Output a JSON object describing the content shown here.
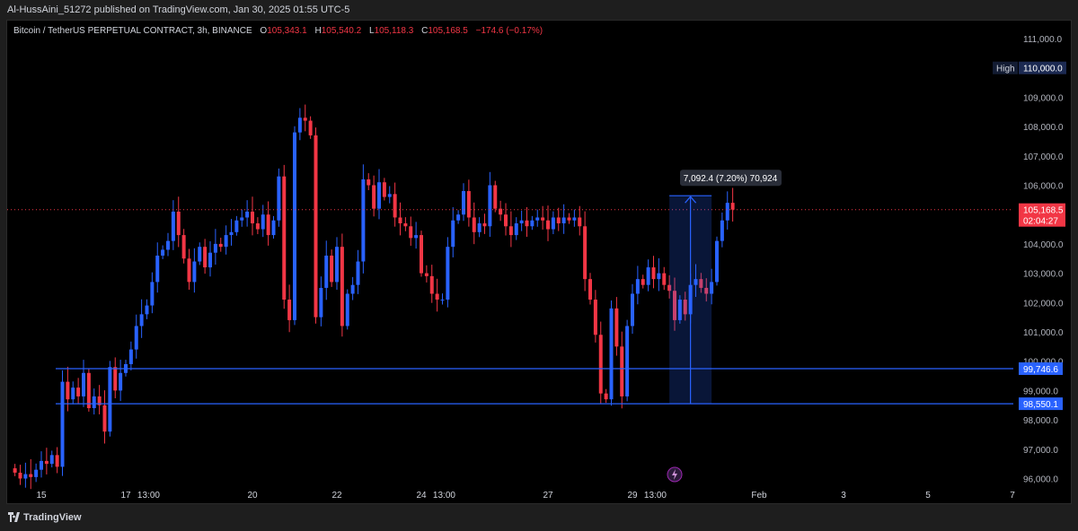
{
  "header": {
    "published_by": "Al-HussAini_51272 published on TradingView.com, Jan 30, 2025 01:55 UTC-5"
  },
  "legend": {
    "symbol": "Bitcoin / TetherUS PERPETUAL CONTRACT, 3h, BINANCE",
    "open_label": "O",
    "open": "105,343.1",
    "high_label": "H",
    "high": "105,540.2",
    "low_label": "L",
    "low": "105,118.3",
    "close_label": "C",
    "close": "105,168.5",
    "change": "−174.6 (−0.17%)"
  },
  "footer": {
    "brand": "TradingView"
  },
  "colors": {
    "up": "#2962ff",
    "down": "#f23645",
    "line": "#2962ff",
    "background": "#000000"
  },
  "chart_data": {
    "type": "candlestick",
    "y_ticks": [
      "111,000.0",
      "110,000.0",
      "109,000.0",
      "108,000.0",
      "107,000.0",
      "106,000.0",
      "105,000.0",
      "104,000.0",
      "103,000.0",
      "102,000.0",
      "101,000.0",
      "100,000.0",
      "99,000.0",
      "98,000.0",
      "97,000.0",
      "96,000.0"
    ],
    "y_tick_values": [
      111000,
      110000,
      109000,
      108000,
      107000,
      106000,
      105000,
      104000,
      103000,
      102000,
      101000,
      100000,
      99000,
      98000,
      97000,
      96000
    ],
    "ylim": [
      96000,
      111000
    ],
    "x_ticks": [
      {
        "label": "15",
        "x": 0
      },
      {
        "label": "17",
        "x": 16
      },
      {
        "label": "13:00",
        "x": 20.33
      },
      {
        "label": "20",
        "x": 40
      },
      {
        "label": "22",
        "x": 56
      },
      {
        "label": "24",
        "x": 72
      },
      {
        "label": "13:00",
        "x": 76.33
      },
      {
        "label": "27",
        "x": 96
      },
      {
        "label": "29",
        "x": 112
      },
      {
        "label": "13:00",
        "x": 116.33
      },
      {
        "label": "Feb",
        "x": 136
      },
      {
        "label": "3",
        "x": 152
      },
      {
        "label": "5",
        "x": 168
      },
      {
        "label": "7",
        "x": 184
      }
    ],
    "x_range": [
      -5,
      188.5
    ],
    "candle_closes": [
      96200,
      96000,
      96150,
      96050,
      96300,
      96600,
      96500,
      96800,
      96400,
      99300,
      98700,
      99100,
      98800,
      99600,
      98400,
      98800,
      98500,
      97600,
      99800,
      99000,
      99600,
      99900,
      100400,
      101200,
      101600,
      101900,
      102700,
      103600,
      103800,
      104100,
      105100,
      104300,
      103500,
      102700,
      103400,
      103900,
      103200,
      103700,
      104000,
      103900,
      104300,
      104400,
      104800,
      104900,
      105100,
      104700,
      104500,
      105000,
      104300,
      104800,
      106300,
      102100,
      101400,
      107800,
      108300,
      108200,
      107700,
      101500,
      102500,
      103600,
      102700,
      103900,
      101200,
      102300,
      102600,
      103400,
      106200,
      106000,
      105200,
      106100,
      105600,
      105700,
      104900,
      104700,
      104600,
      104200,
      104300,
      103000,
      102900,
      102300,
      102100,
      102100,
      103900,
      104800,
      105000,
      105800,
      104900,
      104400,
      104700,
      104600,
      106000,
      105200,
      105000,
      104600,
      104300,
      104700,
      104800,
      104600,
      104800,
      104900,
      104800,
      104500,
      104900,
      104700,
      104900,
      104800,
      104900,
      104600,
      102800,
      102100,
      100900,
      98900,
      98700,
      101800,
      100500,
      98800,
      101200,
      102300,
      102800,
      102600,
      103200,
      102800,
      103000,
      102600,
      102400,
      101400,
      102100,
      101600,
      102600,
      102800,
      102500,
      102300,
      102700,
      104100,
      104800,
      105400,
      105168.5
    ],
    "support_levels": [
      {
        "label": "99,746.6",
        "value": 99746.6
      },
      {
        "label": "98,550.1",
        "value": 98550.1
      }
    ],
    "high_badge": {
      "label": "High",
      "value_label": "110,000.0",
      "value": 110000
    },
    "last_price": {
      "label": "105,168.5",
      "value": 105168.5,
      "countdown": "02:04:27"
    },
    "projection": {
      "label": "7,092.4 (7.20%) 70,924",
      "x_start": 119,
      "x_end": 127,
      "y_bottom": 98550.1,
      "y_top": 105642.5
    }
  }
}
